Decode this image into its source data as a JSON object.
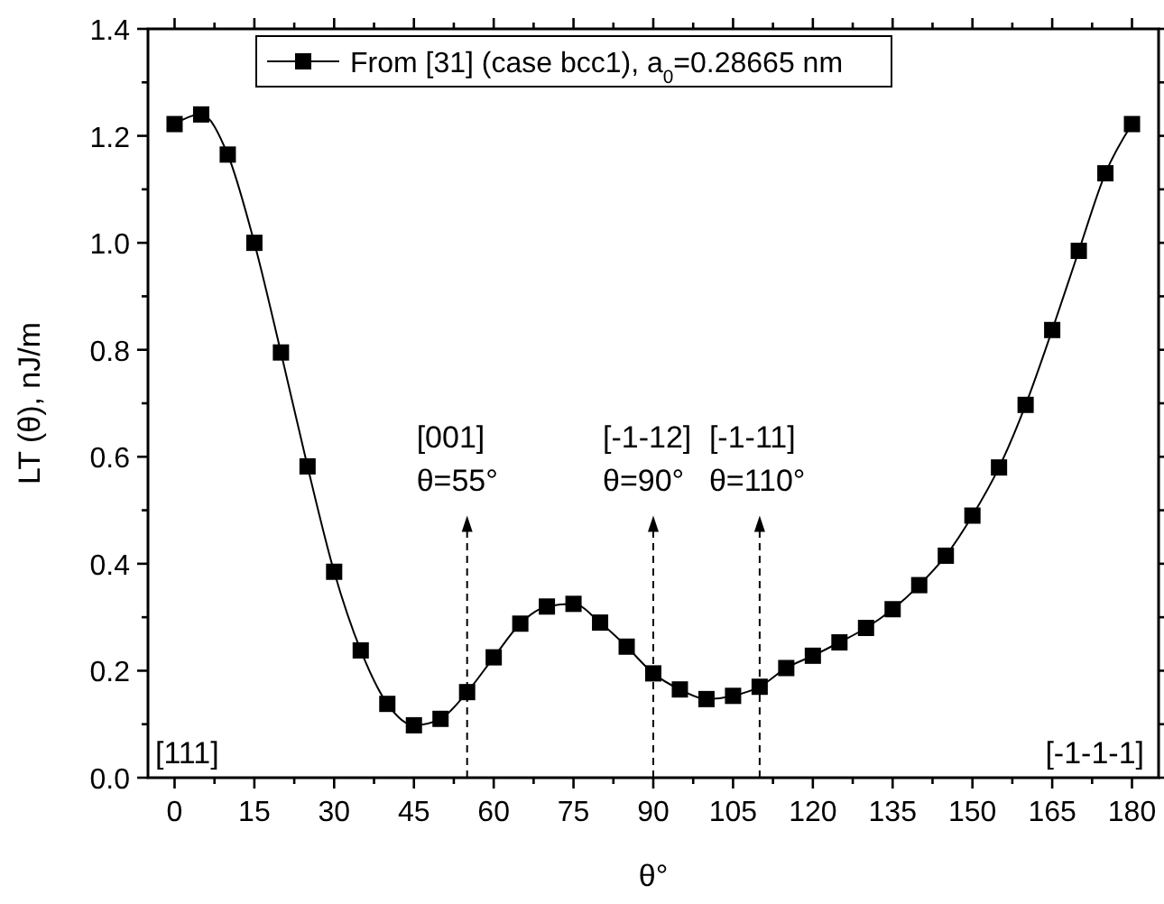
{
  "chart_data": {
    "type": "line",
    "xlabel": "θ°",
    "ylabel": "LT (θ), nJ/m",
    "x": [
      0,
      5,
      10,
      15,
      20,
      25,
      30,
      35,
      40,
      45,
      50,
      55,
      60,
      65,
      70,
      75,
      80,
      85,
      90,
      95,
      100,
      105,
      110,
      115,
      120,
      125,
      130,
      135,
      140,
      145,
      150,
      155,
      160,
      165,
      170,
      175,
      180
    ],
    "series": [
      {
        "name": "From [31] (case bcc1), a$_{0}$=0.28665 nm",
        "color": "#000000",
        "values": [
          1.222,
          1.24,
          1.165,
          1.0,
          0.795,
          0.582,
          0.385,
          0.238,
          0.138,
          0.098,
          0.11,
          0.16,
          0.225,
          0.288,
          0.32,
          0.325,
          0.29,
          0.245,
          0.195,
          0.165,
          0.147,
          0.153,
          0.17,
          0.205,
          0.228,
          0.253,
          0.28,
          0.315,
          0.36,
          0.415,
          0.49,
          0.58,
          0.697,
          0.837,
          0.985,
          1.13,
          1.222
        ]
      }
    ],
    "xlim": [
      -5,
      185
    ],
    "xticks": [
      0,
      {
        "value": 7.5,
        "label": null
      },
      15,
      {
        "value": 22.5,
        "label": null
      },
      30,
      {
        "value": 37.5,
        "label": null
      },
      45,
      {
        "value": 52.5,
        "label": null
      },
      60,
      {
        "value": 67.5,
        "label": null
      },
      75,
      {
        "value": 82.5,
        "label": null
      },
      90,
      {
        "value": 97.5,
        "label": null
      },
      105,
      {
        "value": 112.5,
        "label": null
      },
      120,
      {
        "value": 127.5,
        "label": null
      },
      135,
      {
        "value": 142.5,
        "label": null
      },
      150,
      {
        "value": 157.5,
        "label": null
      },
      165,
      {
        "value": 172.5,
        "label": null
      },
      180
    ],
    "ylim": [
      0,
      1.4
    ],
    "yticks": [
      {
        "value": 0,
        "label": "0.0"
      },
      {
        "value": 0.1,
        "label": null
      },
      0.2,
      {
        "value": 0.3,
        "label": null
      },
      0.4,
      {
        "value": 0.5,
        "label": null
      },
      0.6,
      {
        "value": 0.7,
        "label": null
      },
      0.8,
      {
        "value": 0.9,
        "label": null
      },
      {
        "value": 1,
        "label": "1.0"
      },
      {
        "value": 1.1,
        "label": null
      },
      1.2,
      {
        "value": 1.3,
        "label": null
      },
      1.4
    ],
    "ref_lines": [
      {
        "axis": "x",
        "value": 55,
        "label": "[001]\nθ=55°",
        "line_style": "dashed"
      },
      {
        "axis": "x",
        "value": 90,
        "label": "[-1-12]\nθ=90°",
        "line_style": "dashed"
      },
      {
        "axis": "x",
        "value": 110,
        "label": "[-1-11]\nθ=110°",
        "line_style": "dashed"
      }
    ],
    "annotations": [
      "[111]",
      "[-1-1-1]"
    ],
    "legend": "top",
    "marker": "square",
    "line_style": "solid",
    "grid": false
  }
}
